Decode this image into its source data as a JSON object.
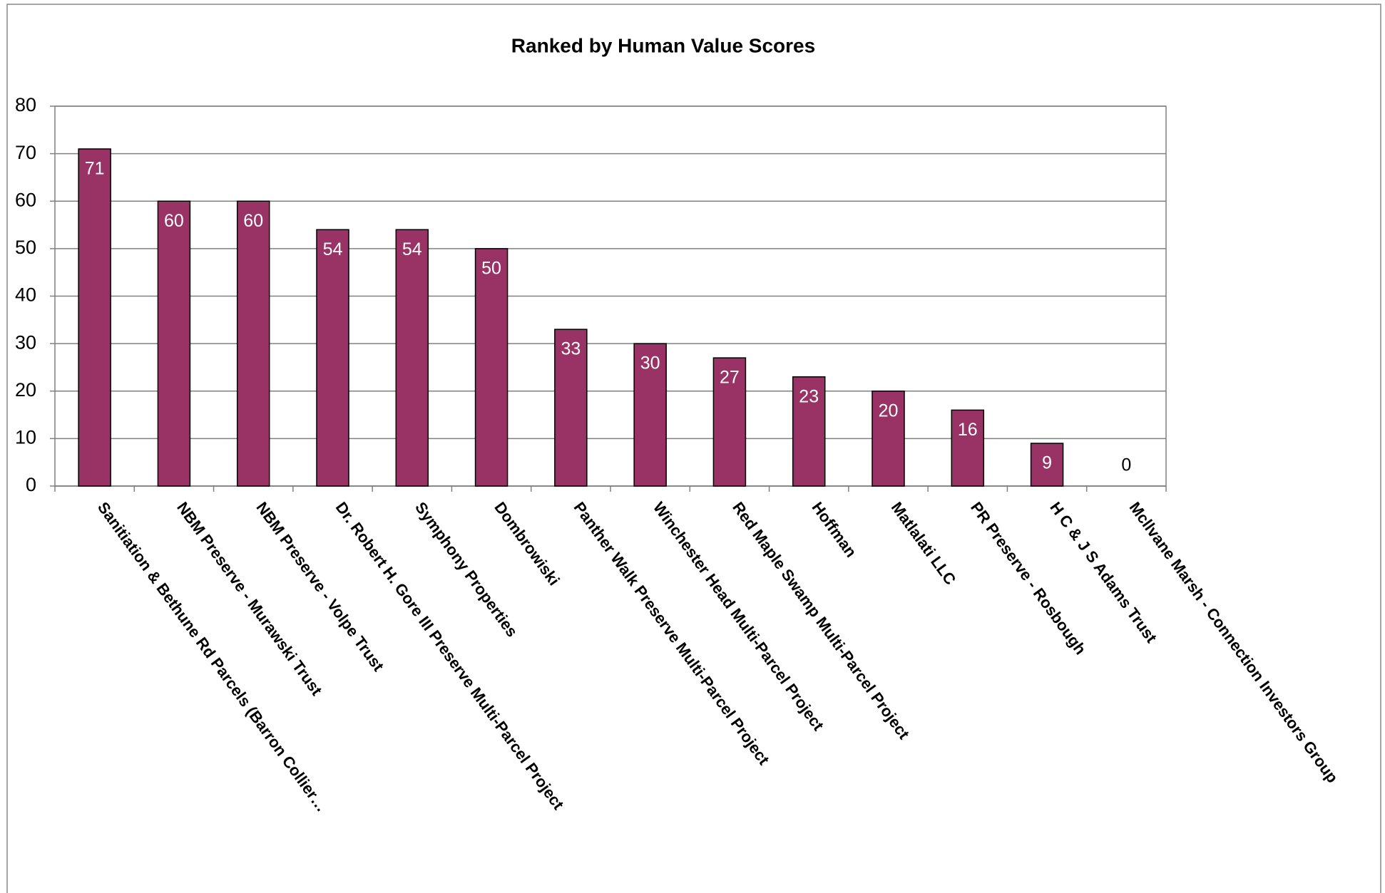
{
  "chart_data": {
    "type": "bar",
    "title": "Ranked by Human Value Scores",
    "categories": [
      "Sanitiation & Bethune Rd Parcels (Barron Collier…",
      "NBM Preserve - Murawski Trust",
      "NBM Preserve - Volpe Trust",
      "Dr. Robert H. Gore III Preserve Multi-Parcel Project",
      "Symphony Properties",
      "Dombrowiski",
      "Panther Walk Preserve Multi-Parcel Project",
      "Winchester Head Multi-Parcel Project",
      "Red Maple Swamp Multi-Parcel Project",
      "Hoffman",
      "Matlalati LLC",
      "PR Preserve - Rosbough",
      "H C & J S Adams Trust",
      "Mcllvane Marsh - Connection Investors Group"
    ],
    "values": [
      71,
      60,
      60,
      54,
      54,
      50,
      33,
      30,
      27,
      23,
      20,
      16,
      9,
      0
    ],
    "color": "#993366",
    "ylim": [
      0,
      80
    ],
    "yticks": [
      0,
      10,
      20,
      30,
      40,
      50,
      60,
      70,
      80
    ],
    "grid": true
  }
}
